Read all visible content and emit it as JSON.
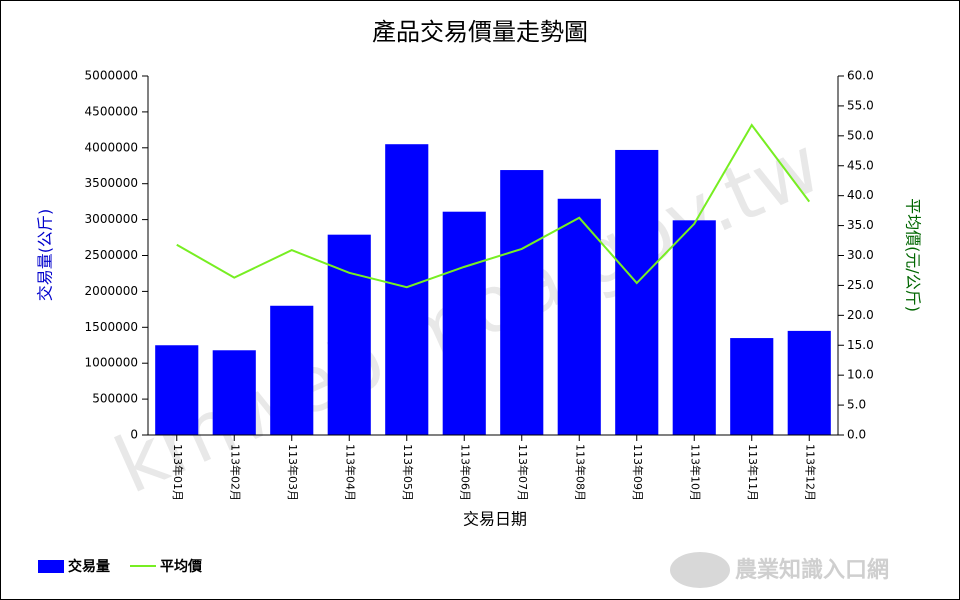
{
  "chart_data": {
    "type": "bar",
    "title": "產品交易價量走勢圖",
    "x_label": "交易日期",
    "y_label": "交易量(公斤)",
    "y2_label": "平均價(元/公斤)",
    "watermark": "kmweb.moa.gov.tw",
    "logo": "農業知識入口網",
    "categories": [
      "113年01月",
      "113年02月",
      "113年03月",
      "113年04月",
      "113年05月",
      "113年06月",
      "113年07月",
      "113年08月",
      "113年09月",
      "113年10月",
      "113年11月",
      "113年12月"
    ],
    "series": [
      {
        "name": "交易量",
        "color": "#0000ff",
        "type": "bar",
        "values": [
          1250000,
          1180000,
          1800000,
          2790000,
          4050000,
          3110000,
          3690000,
          3290000,
          3970000,
          2990000,
          1350000,
          1450000
        ]
      },
      {
        "name": "平均價",
        "color": "#77ee22",
        "type": "line",
        "axis": "y2",
        "values": [
          31.8,
          26.3,
          30.9,
          27.1,
          24.7,
          28.1,
          31.1,
          36.3,
          25.4,
          35.3,
          51.8,
          39.0
        ]
      }
    ],
    "ylim": [
      0,
      5000000
    ],
    "yticks": [
      0,
      500000,
      1000000,
      1500000,
      2000000,
      2500000,
      3000000,
      3500000,
      4000000,
      4500000,
      5000000
    ],
    "y2lim": [
      0,
      60
    ],
    "y2ticks": [
      {
        "value": 0,
        "label": "0.0"
      },
      {
        "value": 5,
        "label": "5.0"
      },
      {
        "value": 10,
        "label": "10.0"
      },
      {
        "value": 15,
        "label": "15.0"
      },
      {
        "value": 20,
        "label": "20.0"
      },
      {
        "value": 25,
        "label": "25.0"
      },
      {
        "value": 30,
        "label": "30.0"
      },
      {
        "value": 35,
        "label": "35.0"
      },
      {
        "value": 40,
        "label": "40.0"
      },
      {
        "value": 45,
        "label": "45.0"
      },
      {
        "value": 50,
        "label": "50.0"
      },
      {
        "value": 55,
        "label": "55.0"
      },
      {
        "value": 60,
        "label": "60.0"
      }
    ],
    "legend": "bottom-left"
  }
}
